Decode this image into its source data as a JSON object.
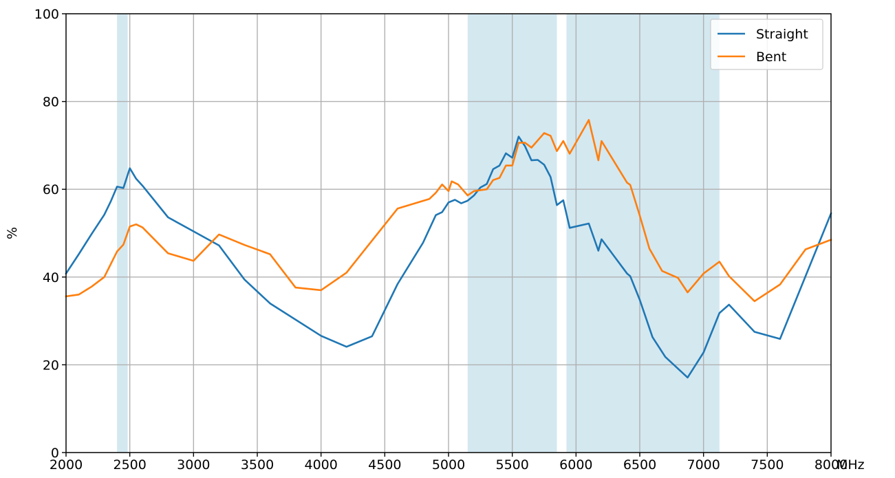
{
  "chart_data": {
    "type": "line",
    "title": "",
    "xlabel": "",
    "ylabel": "%",
    "x_unit_label": "MHz",
    "xlim": [
      2000,
      8000
    ],
    "ylim": [
      0,
      100
    ],
    "xticks": [
      2000,
      2500,
      3000,
      3500,
      4000,
      4500,
      5000,
      5500,
      6000,
      6500,
      7000,
      7500,
      8000
    ],
    "yticks": [
      0,
      20,
      40,
      60,
      80,
      100
    ],
    "xtick_labels": [
      "2000",
      "2500",
      "3000",
      "3500",
      "4000",
      "4500",
      "5000",
      "5500",
      "6000",
      "6500",
      "7000",
      "7500",
      "8000"
    ],
    "ytick_labels": [
      "0",
      "20",
      "40",
      "60",
      "80",
      "100"
    ],
    "grid": true,
    "legend_position": "top-right",
    "shaded_bands": [
      {
        "x_start": 2400,
        "x_end": 2483.5
      },
      {
        "x_start": 5150,
        "x_end": 5850
      },
      {
        "x_start": 5925,
        "x_end": 7125
      }
    ],
    "band_color": "#d4e8f0",
    "series": [
      {
        "name": "Straight",
        "color": "#1f77b4",
        "points": [
          [
            2000,
            40.8
          ],
          [
            2100,
            45.2
          ],
          [
            2200,
            49.8
          ],
          [
            2300,
            54.2
          ],
          [
            2350,
            57.2
          ],
          [
            2400,
            60.6
          ],
          [
            2450,
            60.3
          ],
          [
            2500,
            64.8
          ],
          [
            2550,
            62.4
          ],
          [
            2600,
            60.8
          ],
          [
            2800,
            53.6
          ],
          [
            3000,
            50.4
          ],
          [
            3200,
            47.2
          ],
          [
            3400,
            39.4
          ],
          [
            3600,
            34.0
          ],
          [
            4000,
            26.6
          ],
          [
            4200,
            24.1
          ],
          [
            4400,
            26.5
          ],
          [
            4600,
            38.4
          ],
          [
            4800,
            47.8
          ],
          [
            4900,
            54.1
          ],
          [
            4950,
            54.8
          ],
          [
            5000,
            57.0
          ],
          [
            5050,
            57.6
          ],
          [
            5100,
            56.8
          ],
          [
            5150,
            57.4
          ],
          [
            5200,
            58.6
          ],
          [
            5250,
            60.4
          ],
          [
            5300,
            61.2
          ],
          [
            5350,
            64.6
          ],
          [
            5400,
            65.4
          ],
          [
            5450,
            68.2
          ],
          [
            5500,
            67.2
          ],
          [
            5550,
            72.0
          ],
          [
            5600,
            69.8
          ],
          [
            5650,
            66.6
          ],
          [
            5700,
            66.7
          ],
          [
            5750,
            65.6
          ],
          [
            5800,
            62.8
          ],
          [
            5850,
            56.4
          ],
          [
            5900,
            57.5
          ],
          [
            5950,
            51.2
          ],
          [
            6100,
            52.2
          ],
          [
            6175,
            46.0
          ],
          [
            6200,
            48.6
          ],
          [
            6400,
            40.8
          ],
          [
            6425,
            40.2
          ],
          [
            6500,
            34.8
          ],
          [
            6600,
            26.3
          ],
          [
            6700,
            21.8
          ],
          [
            6875,
            17.1
          ],
          [
            7000,
            22.8
          ],
          [
            7125,
            31.8
          ],
          [
            7200,
            33.7
          ],
          [
            7400,
            27.5
          ],
          [
            7600,
            25.9
          ],
          [
            8000,
            54.5
          ]
        ]
      },
      {
        "name": "Bent",
        "color": "#ff7f0e",
        "points": [
          [
            2000,
            35.6
          ],
          [
            2100,
            36.0
          ],
          [
            2200,
            37.8
          ],
          [
            2300,
            40.0
          ],
          [
            2400,
            45.8
          ],
          [
            2450,
            47.4
          ],
          [
            2500,
            51.5
          ],
          [
            2550,
            52.0
          ],
          [
            2600,
            51.3
          ],
          [
            2800,
            45.4
          ],
          [
            3000,
            43.7
          ],
          [
            3200,
            49.7
          ],
          [
            3400,
            47.3
          ],
          [
            3600,
            45.2
          ],
          [
            3800,
            37.6
          ],
          [
            4000,
            37.0
          ],
          [
            4200,
            41.0
          ],
          [
            4400,
            48.3
          ],
          [
            4600,
            55.6
          ],
          [
            4850,
            57.8
          ],
          [
            4900,
            59.2
          ],
          [
            4950,
            61.1
          ],
          [
            5000,
            59.6
          ],
          [
            5025,
            61.8
          ],
          [
            5075,
            61.1
          ],
          [
            5150,
            58.6
          ],
          [
            5200,
            59.6
          ],
          [
            5300,
            60.0
          ],
          [
            5350,
            62.1
          ],
          [
            5400,
            62.6
          ],
          [
            5450,
            65.4
          ],
          [
            5500,
            65.4
          ],
          [
            5550,
            70.6
          ],
          [
            5600,
            70.6
          ],
          [
            5650,
            69.5
          ],
          [
            5750,
            72.8
          ],
          [
            5800,
            72.2
          ],
          [
            5850,
            68.7
          ],
          [
            5900,
            71.0
          ],
          [
            5950,
            68.1
          ],
          [
            6100,
            75.8
          ],
          [
            6175,
            66.6
          ],
          [
            6200,
            71.0
          ],
          [
            6400,
            61.5
          ],
          [
            6425,
            61.0
          ],
          [
            6500,
            54.0
          ],
          [
            6575,
            46.5
          ],
          [
            6675,
            41.4
          ],
          [
            6800,
            39.8
          ],
          [
            6875,
            36.5
          ],
          [
            7000,
            40.8
          ],
          [
            7125,
            43.5
          ],
          [
            7200,
            40.2
          ],
          [
            7400,
            34.5
          ],
          [
            7600,
            38.3
          ],
          [
            7800,
            46.3
          ],
          [
            8000,
            48.5
          ]
        ]
      }
    ]
  }
}
